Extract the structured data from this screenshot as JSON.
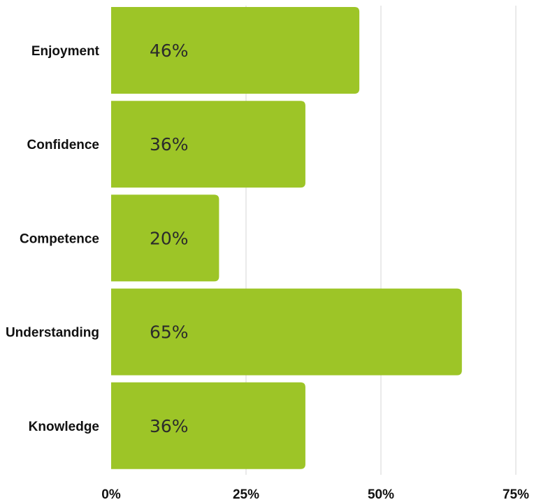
{
  "chart_data": {
    "type": "bar",
    "orientation": "horizontal",
    "categories": [
      "Enjoyment",
      "Confidence",
      "Competence",
      "Understanding",
      "Knowledge"
    ],
    "values": [
      46,
      36,
      20,
      65,
      36
    ],
    "value_labels": [
      "46%",
      "36%",
      "20%",
      "65%",
      "36%"
    ],
    "x_ticks": [
      0,
      25,
      50,
      75
    ],
    "x_tick_labels": [
      "0%",
      "25%",
      "50%",
      "75%"
    ],
    "xlim": [
      0,
      75
    ],
    "grid": "vertical",
    "bar_color": "#9dc527",
    "title": "",
    "xlabel": "",
    "ylabel": ""
  }
}
